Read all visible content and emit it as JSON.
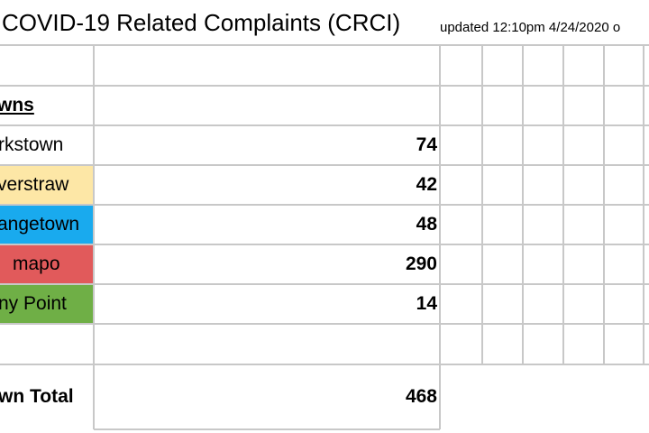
{
  "sheet": {
    "title": "COVID-19 Related Complaints (CRCI)",
    "updated": "updated 12:10pm 4/24/2020 o",
    "header_label": "wns",
    "rows": [
      {
        "label": "rkstown",
        "value": "74",
        "fill": "#ffffff"
      },
      {
        "label": "verstraw",
        "value": "42",
        "fill": "#fde7a6"
      },
      {
        "label": "angetown",
        "value": "48",
        "fill": "#19aaee"
      },
      {
        "label": "mapo",
        "value": "290",
        "fill": "#e15a5b"
      },
      {
        "label": "ny Point",
        "value": "14",
        "fill": "#6faf46"
      }
    ],
    "total_label": "wn Total",
    "total_value": "468"
  }
}
